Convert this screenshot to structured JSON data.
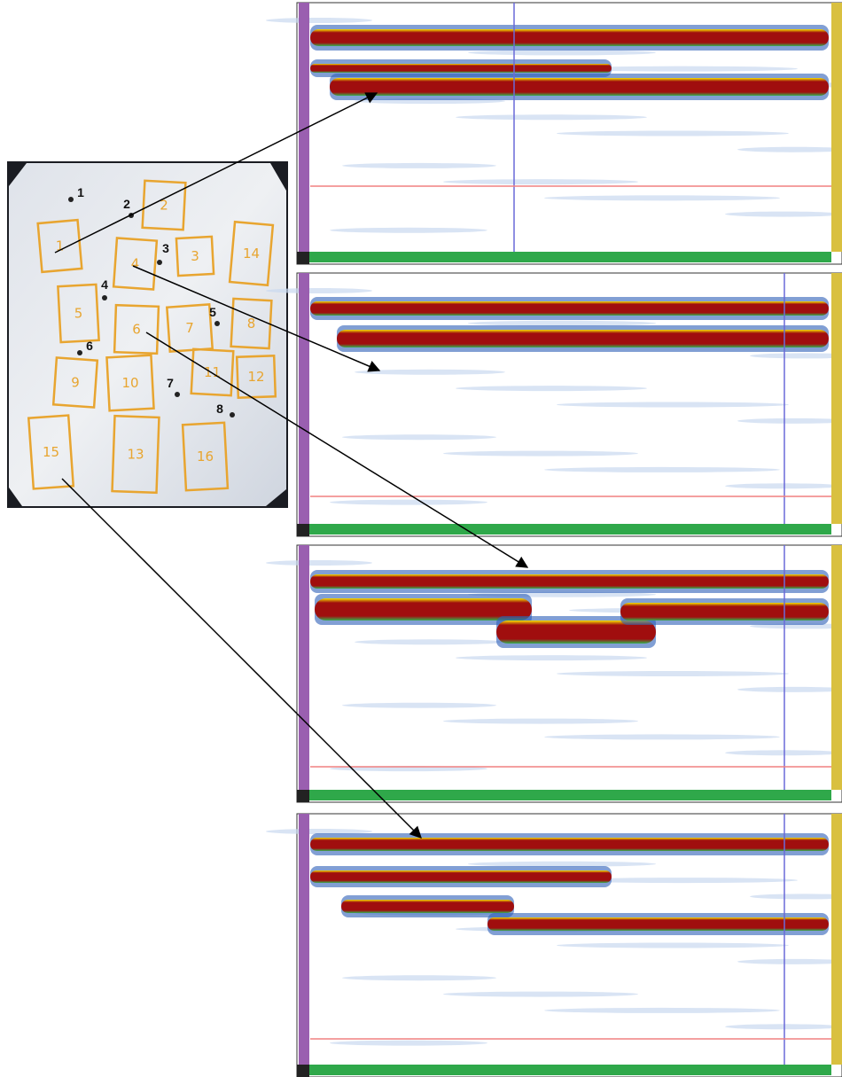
{
  "photo": {
    "points": [
      "1",
      "2",
      "3",
      "4",
      "5",
      "6",
      "7",
      "8"
    ],
    "regions": [
      "1",
      "2",
      "3",
      "4",
      "14",
      "5",
      "6",
      "7",
      "8",
      "9",
      "10",
      "11",
      "12",
      "15",
      "13",
      "16"
    ]
  }
}
